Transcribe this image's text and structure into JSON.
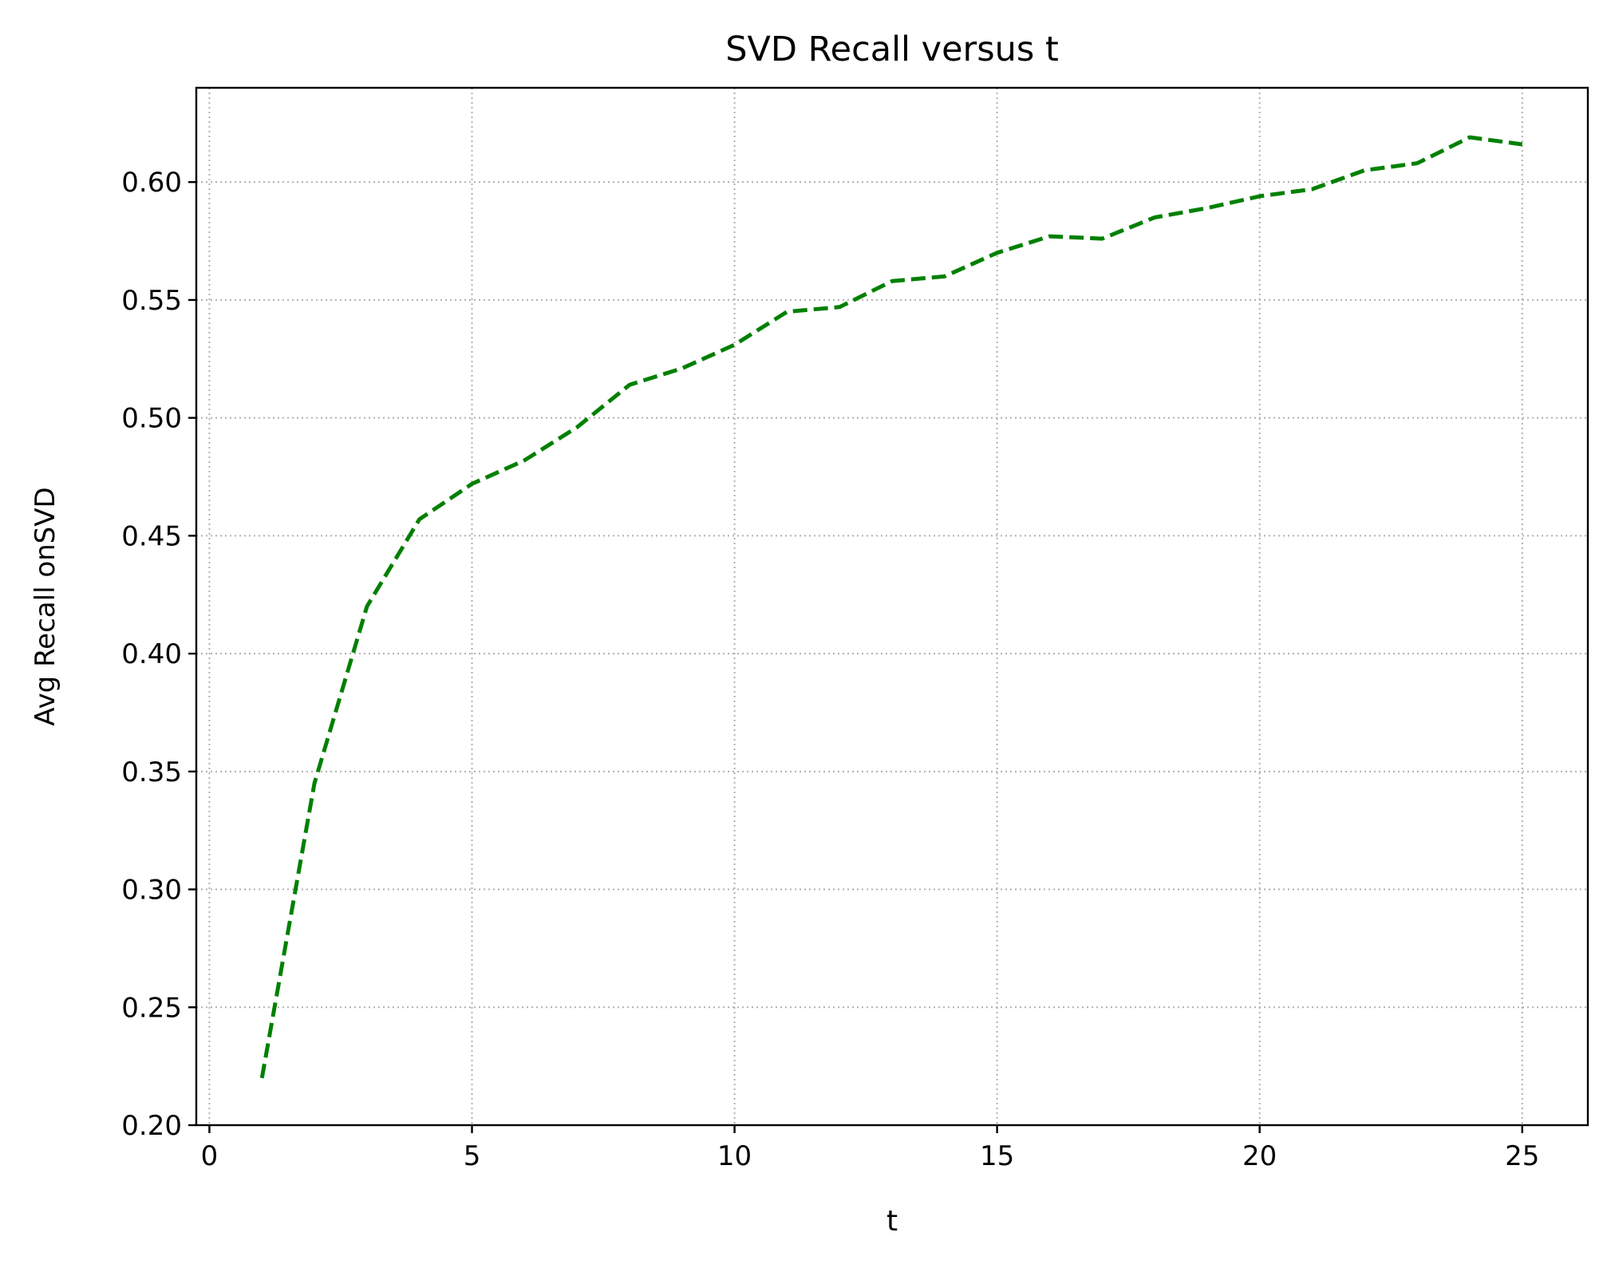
{
  "chart_data": {
    "type": "line",
    "title": "SVD Recall versus t",
    "xlabel": "t",
    "ylabel": "Avg Recall onSVD",
    "xlim": [
      -0.25,
      26.25
    ],
    "ylim": [
      0.2,
      0.64
    ],
    "xticks": [
      0,
      5,
      10,
      15,
      20,
      25
    ],
    "xtick_labels": [
      "0",
      "5",
      "10",
      "15",
      "20",
      "25"
    ],
    "yticks": [
      0.2,
      0.25,
      0.3,
      0.35,
      0.4,
      0.45,
      0.5,
      0.55,
      0.6
    ],
    "ytick_labels": [
      "0.20",
      "0.25",
      "0.30",
      "0.35",
      "0.40",
      "0.45",
      "0.50",
      "0.55",
      "0.60"
    ],
    "grid": true,
    "legend": false,
    "series": [
      {
        "x": [
          1,
          2,
          3,
          4,
          5,
          6,
          7,
          8,
          9,
          10,
          11,
          12,
          13,
          14,
          15,
          16,
          17,
          18,
          19,
          20,
          21,
          22,
          23,
          24,
          25
        ],
        "values": [
          0.22,
          0.345,
          0.42,
          0.457,
          0.472,
          0.482,
          0.496,
          0.514,
          0.521,
          0.531,
          0.545,
          0.547,
          0.558,
          0.56,
          0.57,
          0.577,
          0.576,
          0.585,
          0.589,
          0.594,
          0.597,
          0.605,
          0.608,
          0.619,
          0.616
        ],
        "color": "#008000",
        "line_style": "dashed"
      }
    ]
  }
}
